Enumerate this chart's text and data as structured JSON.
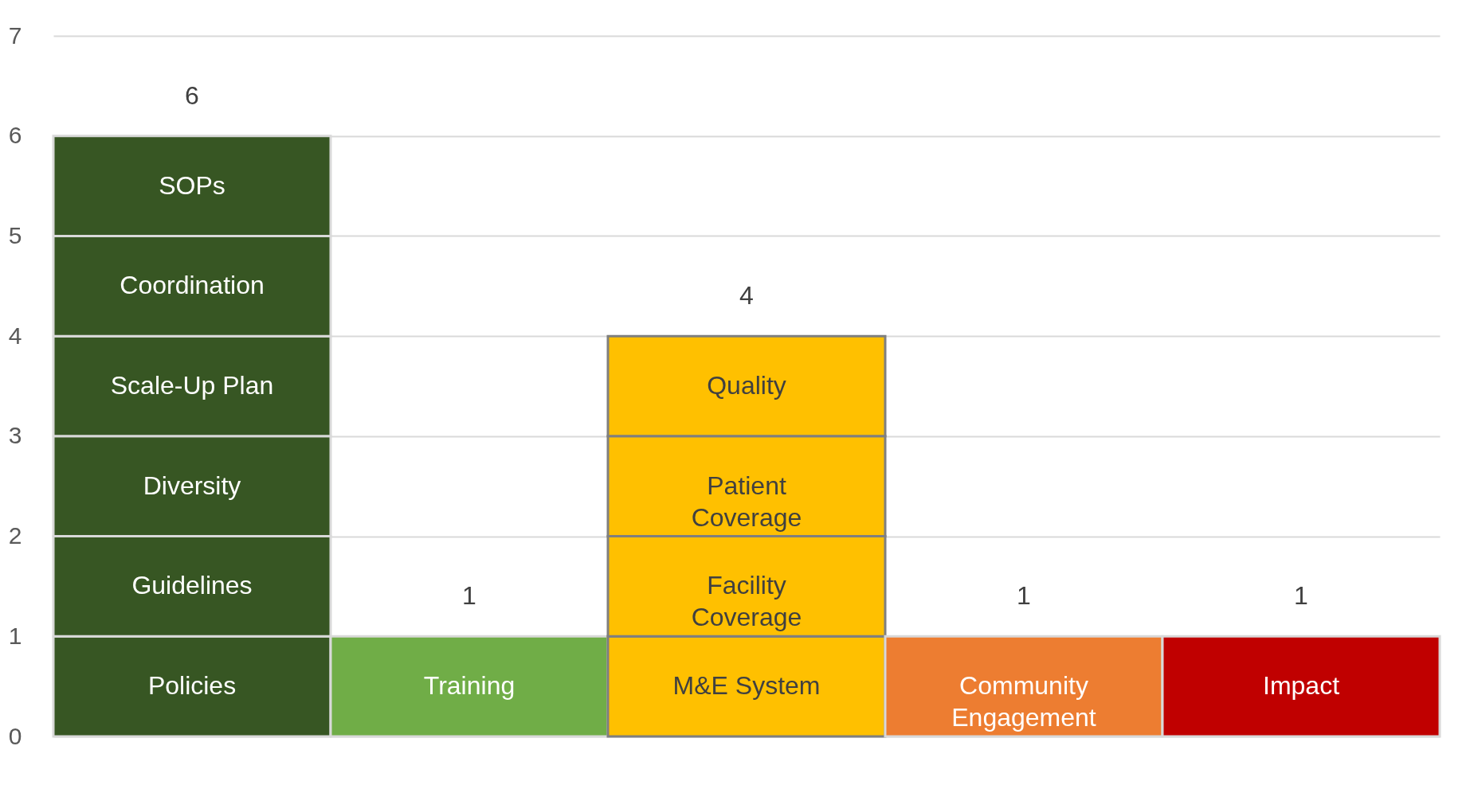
{
  "chart_data": {
    "type": "bar",
    "stacked": true,
    "categories": [
      null,
      null,
      null,
      null,
      null
    ],
    "series": [
      {
        "name": "Policies",
        "color": "#375623",
        "values": [
          1,
          null,
          null,
          null,
          null
        ]
      },
      {
        "name": "Guidelines",
        "color": "#375623",
        "values": [
          1,
          null,
          null,
          null,
          null
        ]
      },
      {
        "name": "Diversity",
        "color": "#375623",
        "values": [
          1,
          null,
          null,
          null,
          null
        ]
      },
      {
        "name": "Scale-Up Plan",
        "color": "#375623",
        "values": [
          1,
          null,
          null,
          null,
          null
        ]
      },
      {
        "name": "Coordination",
        "color": "#375623",
        "values": [
          1,
          null,
          null,
          null,
          null
        ]
      },
      {
        "name": "SOPs",
        "color": "#375623",
        "values": [
          1,
          null,
          null,
          null,
          null
        ]
      },
      {
        "name": "Training",
        "color": "#70ad47",
        "values": [
          null,
          1,
          null,
          null,
          null
        ]
      },
      {
        "name": "M&E System",
        "color": "#ffc000",
        "values": [
          null,
          null,
          1,
          null,
          null
        ]
      },
      {
        "name": "Facility Coverage",
        "color": "#ffc000",
        "values": [
          null,
          null,
          1,
          null,
          null
        ]
      },
      {
        "name": "Patient Coverage",
        "color": "#ffc000",
        "values": [
          null,
          null,
          1,
          null,
          null
        ]
      },
      {
        "name": "Quality",
        "color": "#ffc000",
        "values": [
          null,
          null,
          1,
          null,
          null
        ]
      },
      {
        "name": "Community Engagement",
        "color": "#ed7d31",
        "values": [
          null,
          null,
          null,
          1,
          null
        ]
      },
      {
        "name": "Impact",
        "color": "#c00000",
        "values": [
          null,
          null,
          null,
          null,
          1
        ]
      }
    ],
    "totals": [
      "6",
      "1",
      "4",
      "1",
      "1"
    ],
    "ylim": [
      0,
      7
    ],
    "yticks": [
      0,
      1,
      2,
      3,
      4,
      5,
      6,
      7
    ],
    "grid": "y",
    "tick_labels": "y"
  }
}
